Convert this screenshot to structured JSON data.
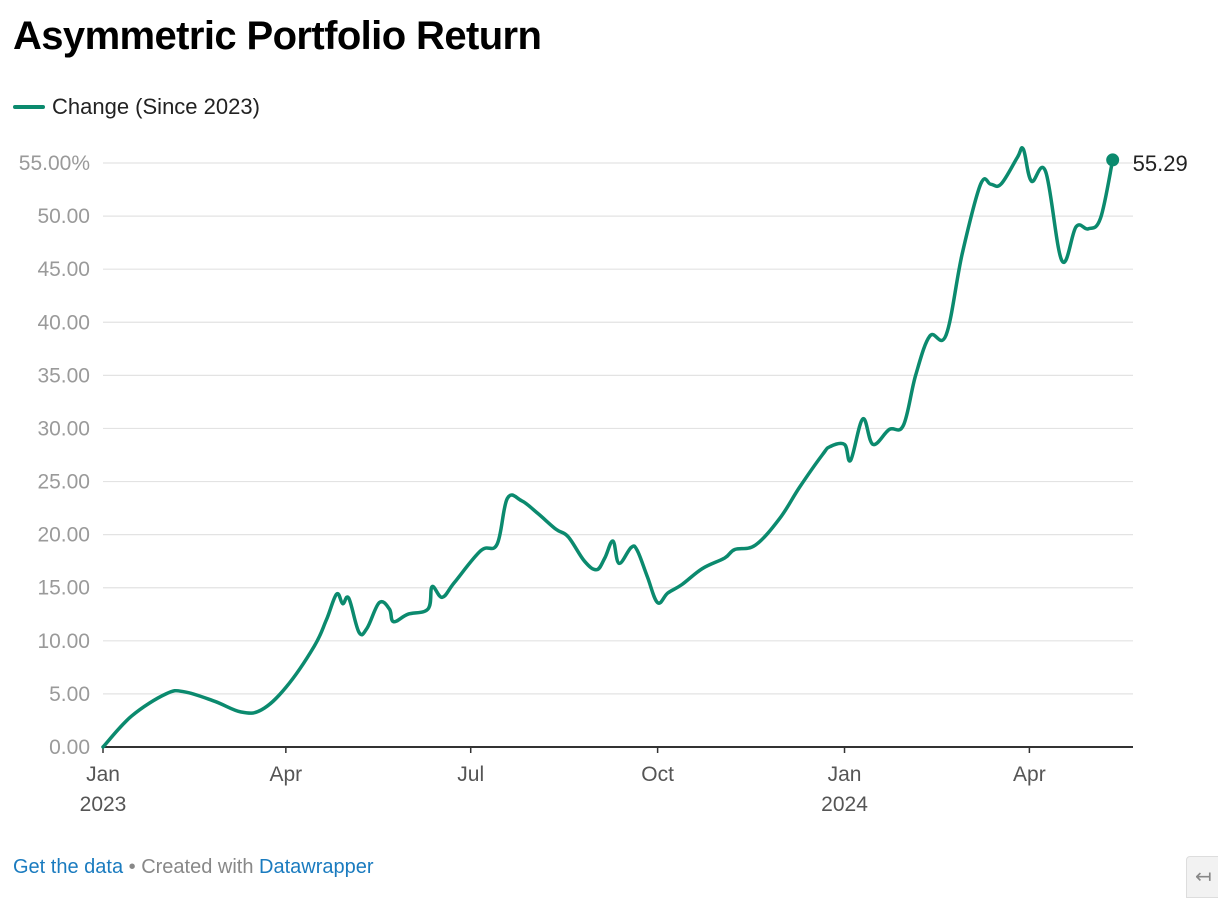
{
  "chart_data": {
    "type": "line",
    "title": "Asymmetric Portfolio Return",
    "series": [
      {
        "name": "Change (Since 2023)",
        "color": "#0b8a6e",
        "points": [
          [
            "2023-01-01",
            0.0
          ],
          [
            "2023-01-15",
            2.9
          ],
          [
            "2023-02-01",
            5.0
          ],
          [
            "2023-02-10",
            5.2
          ],
          [
            "2023-02-25",
            4.3
          ],
          [
            "2023-03-10",
            3.3
          ],
          [
            "2023-03-20",
            3.5
          ],
          [
            "2023-04-01",
            5.6
          ],
          [
            "2023-04-15",
            9.5
          ],
          [
            "2023-04-21",
            12.0
          ],
          [
            "2023-04-26",
            14.4
          ],
          [
            "2023-04-29",
            13.5
          ],
          [
            "2023-05-02",
            14.0
          ],
          [
            "2023-05-07",
            10.8
          ],
          [
            "2023-05-11",
            11.2
          ],
          [
            "2023-05-17",
            13.6
          ],
          [
            "2023-05-22",
            13.0
          ],
          [
            "2023-05-24",
            11.8
          ],
          [
            "2023-05-31",
            12.5
          ],
          [
            "2023-06-10",
            13.0
          ],
          [
            "2023-06-12",
            15.1
          ],
          [
            "2023-06-17",
            14.1
          ],
          [
            "2023-06-23",
            15.5
          ],
          [
            "2023-07-06",
            18.5
          ],
          [
            "2023-07-14",
            19.1
          ],
          [
            "2023-07-19",
            23.4
          ],
          [
            "2023-07-26",
            23.2
          ],
          [
            "2023-08-03",
            22.0
          ],
          [
            "2023-08-12",
            20.5
          ],
          [
            "2023-08-18",
            19.8
          ],
          [
            "2023-08-26",
            17.5
          ],
          [
            "2023-09-01",
            16.7
          ],
          [
            "2023-09-05",
            17.8
          ],
          [
            "2023-09-09",
            19.4
          ],
          [
            "2023-09-12",
            17.3
          ],
          [
            "2023-09-18",
            18.8
          ],
          [
            "2023-09-21",
            18.5
          ],
          [
            "2023-09-26",
            16.0
          ],
          [
            "2023-10-01",
            13.6
          ],
          [
            "2023-10-06",
            14.5
          ],
          [
            "2023-10-13",
            15.3
          ],
          [
            "2023-10-23",
            16.8
          ],
          [
            "2023-11-03",
            17.8
          ],
          [
            "2023-11-08",
            18.6
          ],
          [
            "2023-11-18",
            19.0
          ],
          [
            "2023-11-30",
            21.5
          ],
          [
            "2023-12-10",
            24.5
          ],
          [
            "2023-12-21",
            27.5
          ],
          [
            "2023-12-25",
            28.3
          ],
          [
            "2024-01-01",
            28.5
          ],
          [
            "2024-01-04",
            27.0
          ],
          [
            "2024-01-10",
            30.9
          ],
          [
            "2024-01-15",
            28.5
          ],
          [
            "2024-01-23",
            29.9
          ],
          [
            "2024-01-30",
            30.3
          ],
          [
            "2024-02-05",
            35.0
          ],
          [
            "2024-02-12",
            38.7
          ],
          [
            "2024-02-20",
            38.8
          ],
          [
            "2024-02-28",
            46.5
          ],
          [
            "2024-03-08",
            53.0
          ],
          [
            "2024-03-13",
            53.0
          ],
          [
            "2024-03-18",
            53.0
          ],
          [
            "2024-03-26",
            55.5
          ],
          [
            "2024-03-29",
            56.3
          ],
          [
            "2024-04-02",
            53.3
          ],
          [
            "2024-04-09",
            54.2
          ],
          [
            "2024-04-17",
            45.8
          ],
          [
            "2024-04-24",
            49.0
          ],
          [
            "2024-04-30",
            48.8
          ],
          [
            "2024-05-06",
            49.8
          ],
          [
            "2024-05-12",
            55.29
          ]
        ]
      }
    ],
    "y_axis": {
      "min": 0,
      "max": 55,
      "step": 5,
      "tick_labels": [
        "0.00",
        "5.00",
        "10.00",
        "15.00",
        "20.00",
        "25.00",
        "30.00",
        "35.00",
        "40.00",
        "45.00",
        "50.00",
        "55.00%"
      ]
    },
    "x_axis": {
      "start": "2023-01-01",
      "end": "2024-05-22",
      "ticks": [
        {
          "date": "2023-01-01",
          "label": "Jan",
          "year": "2023"
        },
        {
          "date": "2023-04-01",
          "label": "Apr",
          "year": ""
        },
        {
          "date": "2023-07-01",
          "label": "Jul",
          "year": ""
        },
        {
          "date": "2023-10-01",
          "label": "Oct",
          "year": ""
        },
        {
          "date": "2024-01-01",
          "label": "Jan",
          "year": "2024"
        },
        {
          "date": "2024-04-01",
          "label": "Apr",
          "year": ""
        }
      ]
    },
    "end_label": "55.29",
    "grid": true,
    "legend_position": "top-left"
  },
  "footer": {
    "get_data_label": "Get the data",
    "separator": " • ",
    "created_with_label": "Created with ",
    "datawrapper_label": "Datawrapper"
  },
  "colors": {
    "line": "#0b8a6e",
    "grid": "#e3e3e3",
    "axis": "#333333",
    "tick_text": "#9a9a9a",
    "link": "#1a7bbf"
  },
  "icons": {
    "corner_button": "expand-arrow-icon"
  },
  "corner_button_glyph": "↤"
}
